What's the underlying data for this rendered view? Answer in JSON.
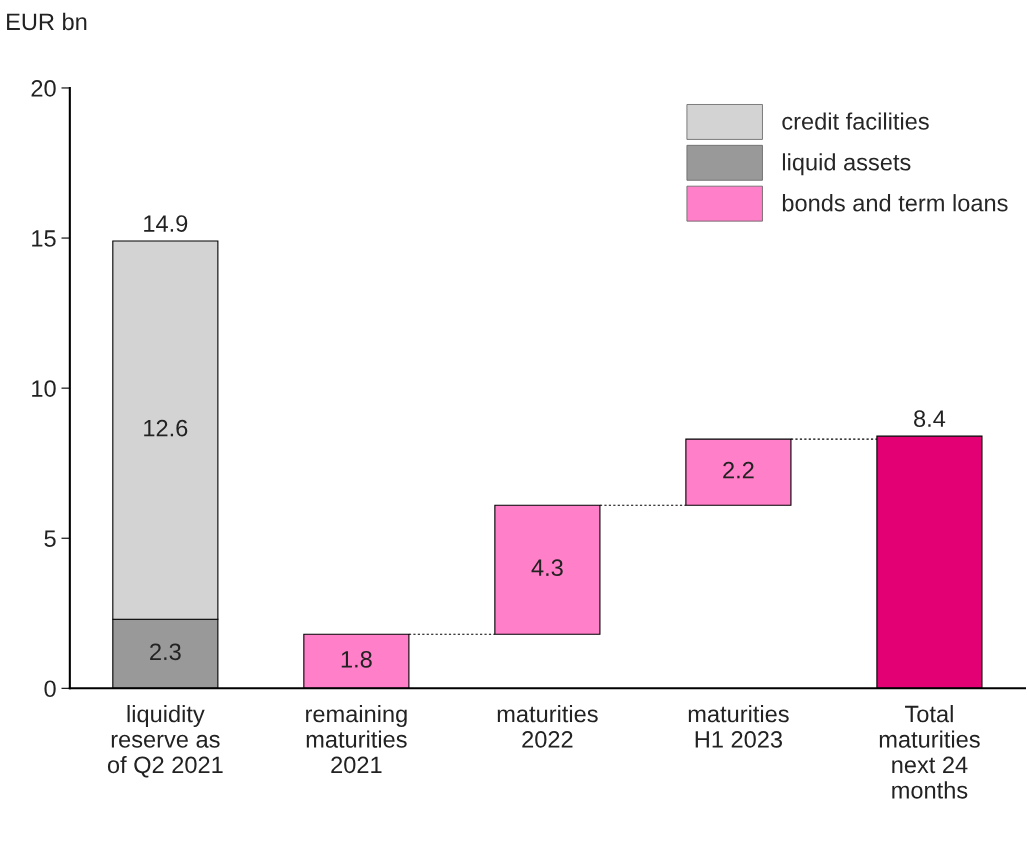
{
  "chart_data": {
    "type": "bar",
    "stacked": true,
    "ylabel": "EUR bn",
    "categories": [
      "liquidity\nreserve as\nof Q2 2021",
      "remaining\nmaturities\n2021",
      "maturities\n2022",
      "maturities\nH1 2023",
      "Total\nmaturities\nnext 24\nmonths"
    ],
    "series": [
      {
        "name": "liquid assets",
        "color": "#999999",
        "values": [
          2.3,
          null,
          null,
          null,
          null
        ],
        "value_labels": [
          "2.3",
          null,
          null,
          null,
          null
        ]
      },
      {
        "name": "credit facilities",
        "color": "#d3d3d3",
        "values": [
          12.6,
          null,
          null,
          null,
          null
        ],
        "value_labels": [
          "12.6",
          null,
          null,
          null,
          null
        ]
      },
      {
        "name": "bonds and term loans",
        "color": "#ff7fc8",
        "values": [
          null,
          1.8,
          4.3,
          2.2,
          null
        ],
        "base": [
          null,
          0,
          1.8,
          6.1,
          null
        ],
        "value_labels": [
          null,
          "1.8",
          "4.3",
          "2.2",
          null
        ]
      },
      {
        "color": "#e20074",
        "values": [
          null,
          null,
          null,
          null,
          8.4
        ]
      }
    ],
    "totals": [
      "14.9",
      null,
      null,
      null,
      "8.4"
    ],
    "ylim": [
      0,
      20
    ],
    "yticks": [
      0,
      5,
      10,
      15,
      20
    ],
    "grid": false,
    "legend": "top right"
  }
}
